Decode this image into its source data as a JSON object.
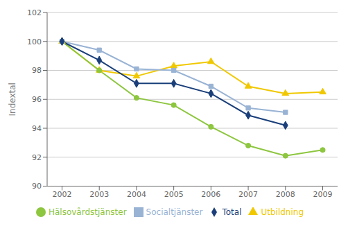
{
  "chart_data": {
    "type": "line",
    "x": [
      2002,
      2003,
      2004,
      2005,
      2006,
      2007,
      2008,
      2009
    ],
    "xlim": [
      2001.6,
      2009.4
    ],
    "xticks": [
      2002,
      2003,
      2004,
      2005,
      2006,
      2007,
      2008,
      2009
    ],
    "ylim": [
      90,
      102
    ],
    "yticks": [
      90,
      92,
      94,
      96,
      98,
      100,
      102
    ],
    "ylabel": "Indextal",
    "grid": "y",
    "legend": "bottom",
    "series": [
      {
        "name": "Utbildning",
        "color": "#f0c800",
        "marker": "triangle",
        "values": [
          100.0,
          98.0,
          97.6,
          98.3,
          98.6,
          96.9,
          96.4,
          96.5
        ]
      },
      {
        "name": "Hälsovårdstjänster",
        "color": "#8dc63f",
        "marker": "circle",
        "values": [
          100.0,
          98.0,
          96.1,
          95.6,
          94.1,
          92.8,
          92.1,
          92.5
        ]
      },
      {
        "name": "Socialtjänster",
        "color": "#99b3d4",
        "marker": "square",
        "values": [
          100.0,
          99.4,
          98.1,
          98.0,
          96.9,
          95.4,
          95.1,
          null
        ]
      },
      {
        "name": "Total",
        "color": "#1a3f7a",
        "marker": "diamond",
        "values": [
          100.0,
          98.7,
          97.1,
          97.1,
          96.4,
          94.9,
          94.2,
          null
        ]
      }
    ]
  }
}
